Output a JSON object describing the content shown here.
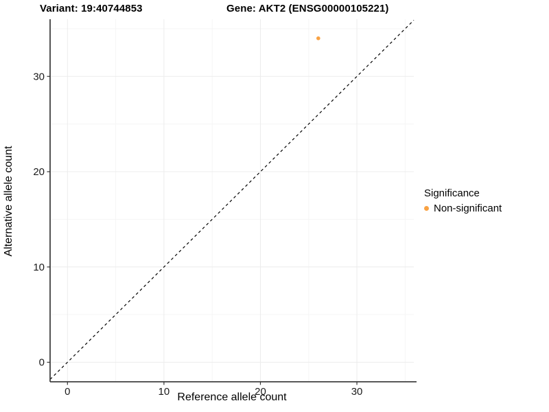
{
  "titles": {
    "variant": "Variant: 19:40744853",
    "gene": "Gene: AKT2 (ENSG00000105221)"
  },
  "colors": {
    "point_orange": "#F9A243",
    "axis_line": "#404040",
    "tick_mark": "#333333",
    "tick_label": "#1A1A1A",
    "grid_major": "#ECECEC",
    "grid_minor": "#F5F5F5",
    "reference_line": "#000000",
    "background": "#FFFFFF"
  },
  "chart_data": {
    "type": "scatter",
    "title": "Variant: 19:40744853 / Gene: AKT2 (ENSG00000105221)",
    "xlabel": "Reference allele count",
    "ylabel": "Alternative allele count",
    "xlim": [
      -1.8,
      35.9
    ],
    "ylim": [
      -2.05,
      36.0
    ],
    "x_major_ticks": [
      0,
      10,
      20,
      30
    ],
    "y_major_ticks": [
      0,
      10,
      20,
      30
    ],
    "x_minor_ticks": [
      5,
      15,
      25,
      35
    ],
    "y_minor_ticks": [
      5,
      15,
      25,
      35
    ],
    "grid": true,
    "reference_line": {
      "type": "abline",
      "slope": 1,
      "intercept": 0,
      "style": "dashed"
    },
    "series": [
      {
        "name": "Non-significant",
        "color": "#F9A243",
        "points": [
          {
            "x": 26,
            "y": 34
          }
        ]
      }
    ],
    "legend": {
      "title": "Significance",
      "position": "right",
      "entries": [
        {
          "label": "Non-significant",
          "color": "#F9A243"
        }
      ]
    }
  }
}
